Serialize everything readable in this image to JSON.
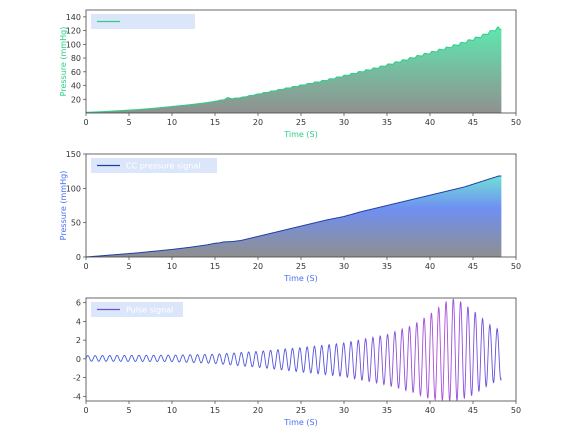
{
  "colors": {
    "green": "#2bcf86",
    "blue": "#4b6ff0",
    "purple": "#6a4fd8",
    "legend_bg": "#dce6fb",
    "gray": "#8f8f8f"
  },
  "chart_data": [
    {
      "type": "area",
      "xlabel": "Time (S)",
      "ylabel": "Pressure (mmHg)",
      "xlim": [
        0,
        50
      ],
      "ylim": [
        0,
        150
      ],
      "xticks": [
        0,
        5,
        10,
        15,
        20,
        25,
        30,
        35,
        40,
        45,
        50
      ],
      "yticks": [
        20,
        40,
        60,
        80,
        100,
        120,
        140
      ],
      "grid": false,
      "legend_position": "top-left",
      "series": [
        {
          "name": "",
          "color": "#2bcf86",
          "x": [
            0,
            2,
            4,
            6,
            8,
            10,
            12,
            14,
            15,
            16,
            16.5,
            17,
            18,
            20,
            22,
            24,
            26,
            28,
            30,
            32,
            34,
            36,
            38,
            40,
            42,
            44,
            46,
            47,
            48,
            48.3
          ],
          "y": [
            1,
            2,
            3.5,
            5,
            7,
            9.5,
            12,
            15,
            17,
            19,
            22,
            20.5,
            22,
            27,
            32,
            37,
            42,
            47,
            53,
            59,
            65,
            72,
            79,
            86,
            93,
            101,
            110,
            116,
            122,
            122
          ],
          "oscillation": {
            "start": 15,
            "end": 48,
            "period": 0.85,
            "amplitude_start": 0.5,
            "amplitude_end": 4
          }
        }
      ]
    },
    {
      "type": "area",
      "xlabel": "Time (S)",
      "ylabel": "Pressure (mmHg)",
      "xlim": [
        0,
        50
      ],
      "ylim": [
        0,
        150
      ],
      "xticks": [
        0,
        5,
        10,
        15,
        20,
        25,
        30,
        35,
        40,
        45,
        50
      ],
      "yticks": [
        0,
        50,
        100,
        150
      ],
      "grid": false,
      "legend_position": "top-left",
      "series": [
        {
          "name": "CC pressure signal",
          "color": "#1f3fa8",
          "x": [
            0,
            2,
            4,
            6,
            8,
            10,
            12,
            14,
            15,
            15.5,
            16,
            17,
            18,
            20,
            22,
            24,
            26,
            28,
            30,
            32,
            34,
            36,
            38,
            40,
            42,
            44,
            46,
            47,
            48,
            48.3
          ],
          "y": [
            0,
            2,
            4,
            6,
            8.5,
            11,
            14,
            17.5,
            20,
            20.5,
            22,
            22.5,
            24,
            30,
            36,
            42,
            48,
            54,
            59,
            66,
            72,
            78,
            84,
            90,
            96,
            102,
            110,
            114,
            118,
            118
          ]
        }
      ]
    },
    {
      "type": "line",
      "xlabel": "Time (S)",
      "ylabel": "",
      "xlim": [
        0,
        50
      ],
      "ylim": [
        -4.5,
        6.5
      ],
      "xticks": [
        0,
        5,
        10,
        15,
        20,
        25,
        30,
        35,
        40,
        45,
        50
      ],
      "yticks": [
        -4,
        -2,
        0,
        2,
        4,
        6
      ],
      "grid": false,
      "legend_position": "top-left",
      "series": [
        {
          "name": "Pulse signal",
          "color": "#6a4fd8",
          "t_start": 0,
          "t_end": 48.3,
          "period": 0.85,
          "offset": 0.1,
          "envelope_t": [
            0,
            10,
            15,
            20,
            25,
            30,
            35,
            38,
            40,
            42,
            43,
            45,
            47,
            48.3
          ],
          "envelope_upper": [
            0.35,
            0.4,
            0.5,
            0.8,
            1.2,
            1.7,
            2.6,
            3.6,
            4.8,
            6.2,
            6.5,
            5.2,
            3.6,
            3.0
          ],
          "envelope_lower": [
            -0.25,
            -0.3,
            -0.5,
            -0.9,
            -1.4,
            -1.9,
            -2.8,
            -3.6,
            -4.3,
            -4.5,
            -4.5,
            -3.9,
            -2.7,
            -2.2
          ]
        }
      ]
    }
  ]
}
